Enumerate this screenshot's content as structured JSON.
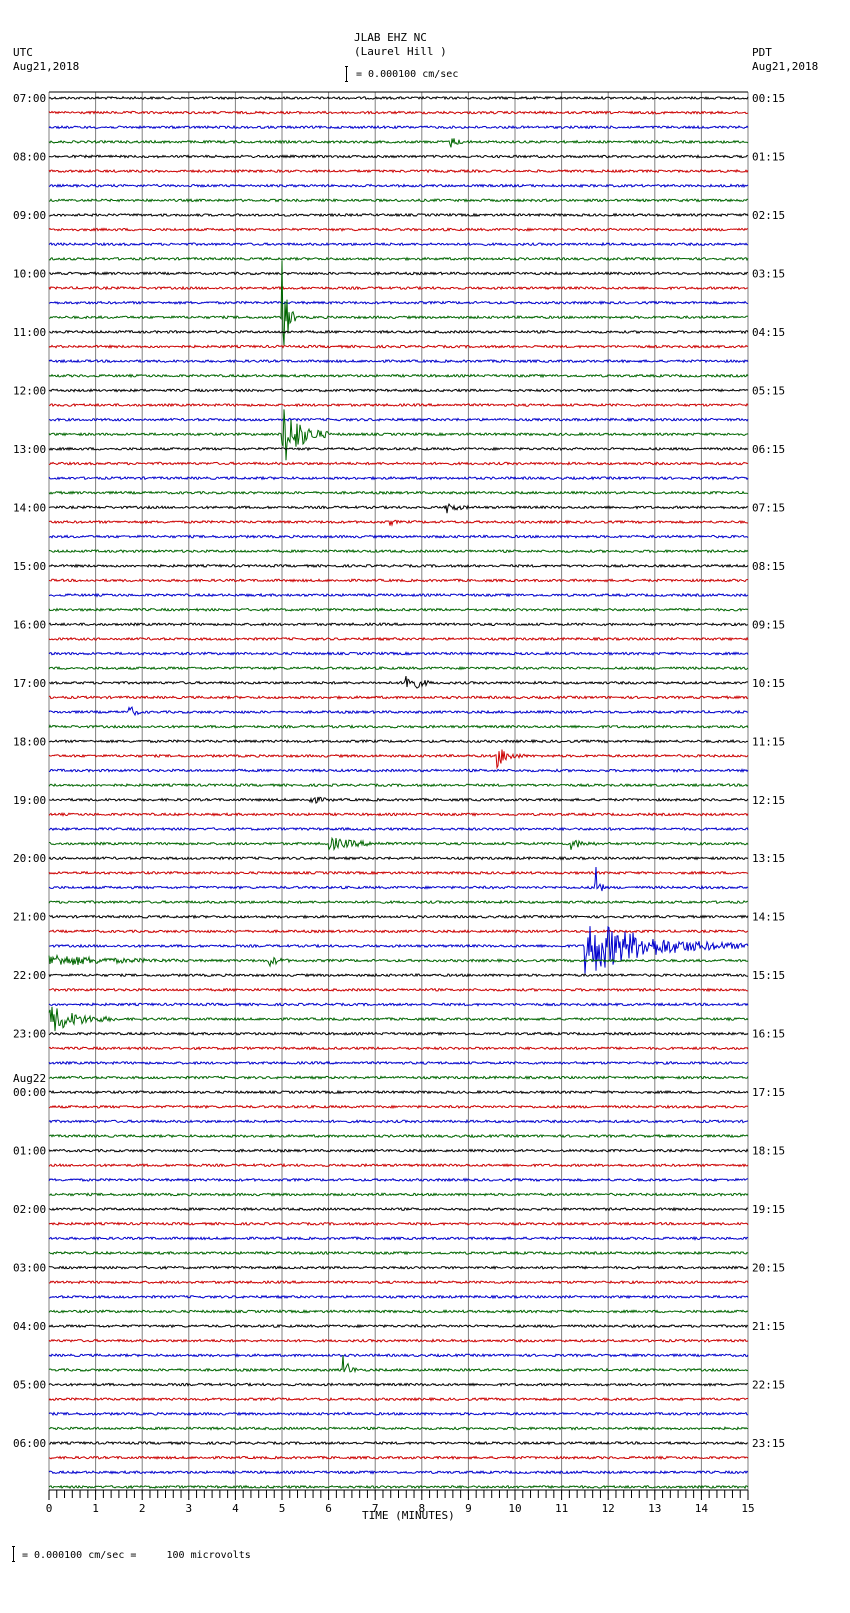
{
  "header": {
    "station": "JLAB EHZ NC",
    "location": "(Laurel Hill )",
    "left_tz": "UTC",
    "left_date": "Aug21,2018",
    "right_tz": "PDT",
    "right_date": "Aug21,2018",
    "scale_text": "= 0.000100 cm/sec"
  },
  "footer": {
    "xlabel": "TIME (MINUTES)",
    "scale_note": "= 0.000100 cm/sec =     100 microvolts"
  },
  "colors": {
    "trace_cycle": [
      "#000000",
      "#cc0000",
      "#0000cc",
      "#006600"
    ],
    "grid": "#808080"
  },
  "chart_data": {
    "type": "line",
    "title": "JLAB EHZ NC (Laurel Hill ) helicorder",
    "xlabel": "TIME (MINUTES)",
    "ylabel": "",
    "xlim": [
      0,
      15
    ],
    "x_ticks": [
      0,
      1,
      2,
      3,
      4,
      5,
      6,
      7,
      8,
      9,
      10,
      11,
      12,
      13,
      14,
      15
    ],
    "grid": true,
    "rows_per_hour": 4,
    "row_minutes": 15,
    "left_labels": [
      "07:00",
      "08:00",
      "09:00",
      "10:00",
      "11:00",
      "12:00",
      "13:00",
      "14:00",
      "15:00",
      "16:00",
      "17:00",
      "18:00",
      "19:00",
      "20:00",
      "21:00",
      "22:00",
      "23:00",
      "Aug22 00:00",
      "01:00",
      "02:00",
      "03:00",
      "04:00",
      "05:00",
      "06:00"
    ],
    "right_labels": [
      "00:15",
      "01:15",
      "02:15",
      "03:15",
      "04:15",
      "05:15",
      "06:15",
      "07:15",
      "08:15",
      "09:15",
      "10:15",
      "11:15",
      "12:15",
      "13:15",
      "14:15",
      "15:15",
      "16:15",
      "17:15",
      "18:15",
      "19:15",
      "20:15",
      "21:15",
      "22:15",
      "23:15"
    ],
    "scale": "0.000100 cm/sec = 100 microvolts",
    "events": [
      {
        "row": 3,
        "minute": 8.6,
        "amplitude": 1.0,
        "duration": 0.4
      },
      {
        "row": 15,
        "minute": 5.0,
        "amplitude": 10.0,
        "duration": 0.3
      },
      {
        "row": 23,
        "minute": 5.0,
        "amplitude": 6.0,
        "duration": 1.0
      },
      {
        "row": 28,
        "minute": 8.5,
        "amplitude": 1.2,
        "duration": 0.5
      },
      {
        "row": 29,
        "minute": 7.3,
        "amplitude": 0.8,
        "duration": 0.2
      },
      {
        "row": 40,
        "minute": 7.6,
        "amplitude": 3.0,
        "duration": 0.6
      },
      {
        "row": 42,
        "minute": 1.7,
        "amplitude": 1.5,
        "duration": 0.3
      },
      {
        "row": 45,
        "minute": 9.6,
        "amplitude": 2.0,
        "duration": 0.6
      },
      {
        "row": 48,
        "minute": 5.6,
        "amplitude": 0.8,
        "duration": 0.5
      },
      {
        "row": 51,
        "minute": 6.0,
        "amplitude": 1.0,
        "duration": 1.5
      },
      {
        "row": 51,
        "minute": 11.2,
        "amplitude": 0.9,
        "duration": 0.6
      },
      {
        "row": 54,
        "minute": 11.7,
        "amplitude": 8.0,
        "duration": 0.2
      },
      {
        "row": 58,
        "minute": 11.5,
        "amplitude": 5.0,
        "duration": 3.5
      },
      {
        "row": 59,
        "minute": 0.0,
        "amplitude": 1.0,
        "duration": 3.0
      },
      {
        "row": 59,
        "minute": 4.7,
        "amplitude": 1.0,
        "duration": 0.5
      },
      {
        "row": 63,
        "minute": 0.0,
        "amplitude": 2.5,
        "duration": 1.5
      },
      {
        "row": 87,
        "minute": 6.3,
        "amplitude": 3.0,
        "duration": 0.3
      }
    ]
  }
}
